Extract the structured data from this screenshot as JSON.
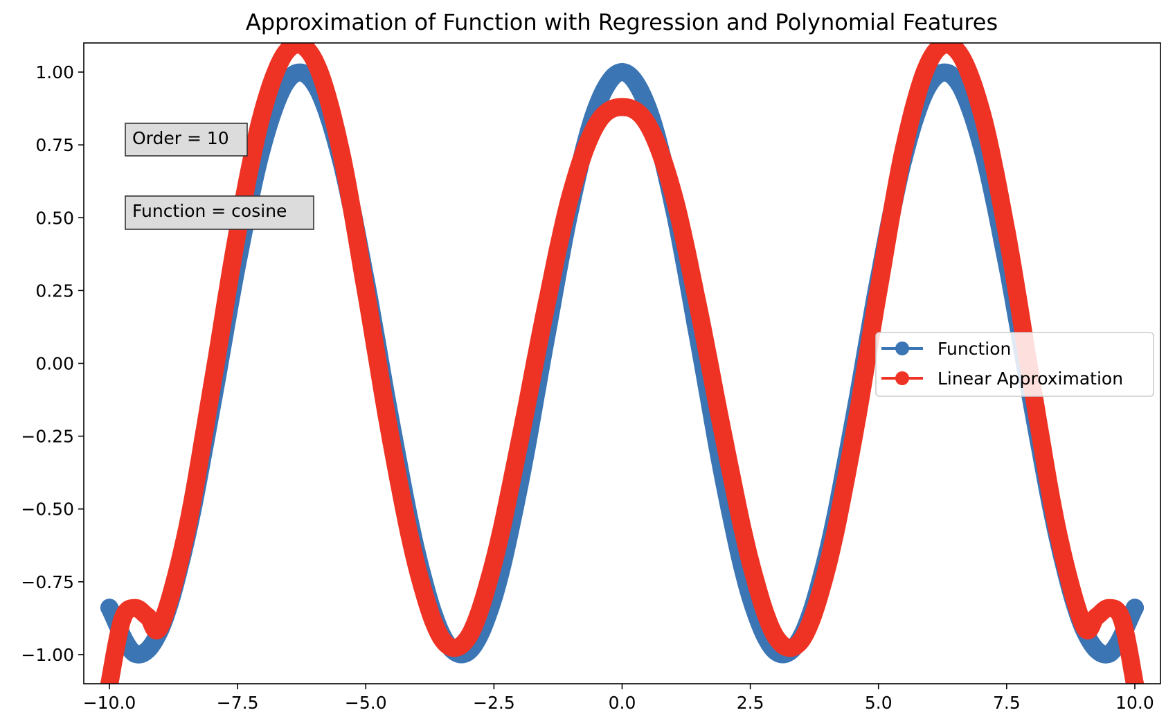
{
  "chart_data": {
    "type": "line",
    "title": "Approximation of Function with Regression and Polynomial Features",
    "xlabel": "",
    "ylabel": "",
    "xlim": [
      -10.5,
      10.5
    ],
    "ylim": [
      -1.1,
      1.1
    ],
    "xticks": [
      -10.0,
      -7.5,
      -5.0,
      -2.5,
      0.0,
      2.5,
      5.0,
      7.5,
      10.0
    ],
    "xtick_labels": [
      "−10.0",
      "−7.5",
      "−5.0",
      "−2.5",
      "0.0",
      "2.5",
      "5.0",
      "7.5",
      "10.0"
    ],
    "yticks": [
      1.0,
      0.75,
      0.5,
      0.25,
      0.0,
      -0.25,
      -0.5,
      -0.75,
      -1.0
    ],
    "ytick_labels": [
      "1.00",
      "0.75",
      "0.50",
      "0.25",
      "0.00",
      "−0.25",
      "−0.50",
      "−0.75",
      "−1.00"
    ],
    "grid": false,
    "legend_position": "center-right",
    "annotations": [
      "Order = 10",
      "Function = cosine"
    ],
    "series": [
      {
        "name": "Function",
        "color": "#3b75b4",
        "x": [
          -10.0,
          -9.5,
          -9.0,
          -8.5,
          -8.0,
          -7.5,
          -7.0,
          -6.5,
          -6.0,
          -5.5,
          -5.0,
          -4.5,
          -4.0,
          -3.5,
          -3.0,
          -2.5,
          -2.0,
          -1.5,
          -1.0,
          -0.5,
          0.0,
          0.5,
          1.0,
          1.5,
          2.0,
          2.5,
          3.0,
          3.5,
          4.0,
          4.5,
          5.0,
          5.5,
          6.0,
          6.5,
          7.0,
          7.5,
          8.0,
          8.5,
          9.0,
          9.5,
          10.0
        ],
        "y": [
          -0.839,
          -0.997,
          -0.911,
          -0.602,
          -0.146,
          0.347,
          0.754,
          0.977,
          0.96,
          0.709,
          0.284,
          -0.211,
          -0.654,
          -0.936,
          -0.99,
          -0.801,
          -0.416,
          0.071,
          0.54,
          0.878,
          1.0,
          0.878,
          0.54,
          0.071,
          -0.416,
          -0.801,
          -0.99,
          -0.936,
          -0.654,
          -0.211,
          0.284,
          0.709,
          0.96,
          0.977,
          0.754,
          0.347,
          -0.146,
          -0.602,
          -0.911,
          -0.997,
          -0.839
        ]
      },
      {
        "name": "Linear Approximation",
        "color": "#ee3224",
        "x": [
          -10.0,
          -9.75,
          -9.5,
          -9.25,
          -9.0,
          -8.5,
          -8.0,
          -7.5,
          -7.0,
          -6.5,
          -6.0,
          -5.5,
          -5.0,
          -4.5,
          -4.0,
          -3.5,
          -3.0,
          -2.5,
          -2.0,
          -1.5,
          -1.0,
          -0.5,
          0.0,
          0.5,
          1.0,
          1.5,
          2.0,
          2.5,
          3.0,
          3.5,
          4.0,
          4.5,
          5.0,
          5.5,
          6.0,
          6.5,
          7.0,
          7.5,
          8.0,
          8.5,
          9.0,
          9.25,
          9.5,
          9.75,
          10.0
        ],
        "y": [
          -1.1,
          -0.88,
          -0.84,
          -0.87,
          -0.9,
          -0.58,
          -0.08,
          0.45,
          0.87,
          1.08,
          1.04,
          0.74,
          0.25,
          -0.27,
          -0.7,
          -0.95,
          -0.94,
          -0.68,
          -0.27,
          0.18,
          0.58,
          0.82,
          0.88,
          0.82,
          0.58,
          0.18,
          -0.27,
          -0.68,
          -0.94,
          -0.95,
          -0.7,
          -0.27,
          0.25,
          0.74,
          1.04,
          1.08,
          0.87,
          0.45,
          -0.08,
          -0.58,
          -0.9,
          -0.87,
          -0.84,
          -0.88,
          -1.1
        ]
      }
    ]
  }
}
